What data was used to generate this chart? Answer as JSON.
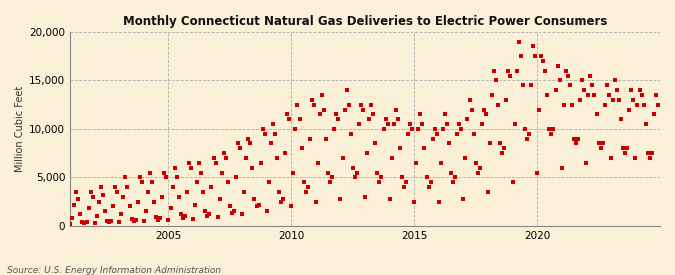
{
  "title": "Monthly Connecticut Natural Gas Deliveries to Electric Power Consumers",
  "ylabel": "Million Cubic Feet",
  "source": "Source: U.S. Energy Information Administration",
  "background_color": "#faefd7",
  "plot_bg_color": "#faefd7",
  "marker_color": "#cc0000",
  "marker_size": 5,
  "ylim": [
    0,
    20000
  ],
  "yticks": [
    0,
    5000,
    10000,
    15000,
    20000
  ],
  "xlim": [
    2001.0,
    2025.0
  ],
  "xtick_years": [
    2005,
    2010,
    2015,
    2020
  ],
  "start_year": 2001,
  "data": [
    200,
    800,
    2200,
    3500,
    2800,
    1200,
    400,
    300,
    400,
    1800,
    3500,
    3000,
    300,
    1000,
    2500,
    4000,
    3200,
    1500,
    500,
    350,
    500,
    2000,
    4000,
    3500,
    400,
    1200,
    3000,
    5000,
    4000,
    2000,
    700,
    500,
    650,
    2500,
    5000,
    4500,
    500,
    1500,
    3500,
    5500,
    4500,
    2500,
    900,
    650,
    800,
    3000,
    5500,
    5000,
    600,
    1800,
    4000,
    6000,
    5000,
    3000,
    1200,
    800,
    1000,
    3500,
    6500,
    6000,
    700,
    2200,
    4500,
    6500,
    5500,
    3500,
    1500,
    1000,
    1200,
    4000,
    7000,
    6500,
    900,
    2800,
    5500,
    7500,
    7000,
    4500,
    2000,
    1300,
    1500,
    5000,
    8500,
    8000,
    1200,
    3500,
    7000,
    9000,
    8500,
    6000,
    2800,
    2000,
    2200,
    6500,
    10000,
    9500,
    1500,
    4500,
    8500,
    10500,
    9500,
    7000,
    3500,
    2500,
    2800,
    7500,
    11500,
    11000,
    2000,
    5500,
    10000,
    12500,
    11000,
    8000,
    4500,
    3500,
    4000,
    9000,
    13000,
    12500,
    2500,
    6500,
    11500,
    13500,
    12000,
    9000,
    5500,
    4500,
    5000,
    10000,
    11500,
    11000,
    2800,
    7000,
    12000,
    14000,
    12500,
    9500,
    6000,
    5000,
    5500,
    10500,
    12500,
    12000,
    3000,
    7500,
    11000,
    12500,
    11500,
    8500,
    5500,
    4500,
    5000,
    10000,
    11000,
    10500,
    2800,
    7000,
    10500,
    12000,
    11000,
    8000,
    5000,
    4000,
    4500,
    9500,
    10500,
    10000,
    2500,
    6500,
    10000,
    11500,
    10500,
    8000,
    5000,
    4000,
    4500,
    9000,
    10000,
    9500,
    2500,
    6500,
    10000,
    11500,
    10500,
    8500,
    5500,
    4500,
    5000,
    9500,
    10500,
    10000,
    2800,
    7000,
    11000,
    13000,
    12000,
    9500,
    6500,
    5500,
    6000,
    10500,
    12000,
    11500,
    3500,
    8500,
    13500,
    16000,
    15000,
    12500,
    8500,
    7500,
    8000,
    13000,
    16000,
    15500,
    4500,
    10500,
    16000,
    19000,
    17500,
    14500,
    10000,
    9000,
    9500,
    14500,
    18500,
    17500,
    5500,
    12000,
    17500,
    17000,
    16000,
    13500,
    10000,
    9500,
    10000,
    14000,
    16500,
    15000,
    6000,
    12500,
    16000,
    15500,
    14500,
    12500,
    9000,
    8500,
    9000,
    13000,
    15000,
    14000,
    6500,
    13500,
    15500,
    14500,
    13500,
    11500,
    8500,
    8000,
    8500,
    12500,
    14500,
    13500,
    7000,
    13000,
    15000,
    14000,
    13000,
    11000,
    8000,
    7500,
    8000,
    12000,
    14000,
    13000,
    7000,
    12500,
    14000,
    13500,
    12500,
    10500,
    7500,
    7000,
    7500,
    11500,
    13500,
    12500
  ]
}
